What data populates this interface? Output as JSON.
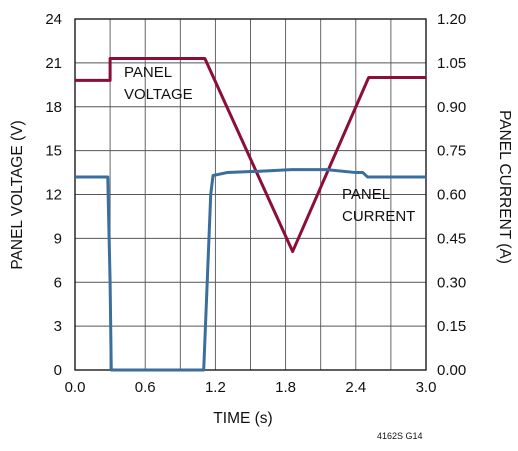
{
  "chart_data": {
    "type": "line",
    "title": "",
    "xlabel": "TIME (s)",
    "ylabel": "PANEL VOLTAGE (V)",
    "y2label": "PANEL CURRENT (A)",
    "xlim": [
      0,
      3.0
    ],
    "ylim": [
      0,
      24
    ],
    "y2lim": [
      0,
      1.2
    ],
    "x_ticks": [
      0.0,
      0.6,
      1.2,
      1.8,
      2.4,
      3.0
    ],
    "x_tick_labels": [
      "0.0",
      "0.6",
      "1.2",
      "1.8",
      "2.4",
      "3.0"
    ],
    "y_ticks": [
      0,
      3,
      6,
      9,
      12,
      15,
      18,
      21,
      24
    ],
    "y_tick_labels": [
      "0",
      "3",
      "6",
      "9",
      "12",
      "15",
      "18",
      "21",
      "24"
    ],
    "y2_ticks": [
      0,
      0.15,
      0.3,
      0.45,
      0.6,
      0.75,
      0.9,
      1.05,
      1.2
    ],
    "y2_tick_labels": [
      "0.00",
      "0.15",
      "0.30",
      "0.45",
      "0.60",
      "0.75",
      "0.90",
      "1.05",
      "1.20"
    ],
    "grid": true,
    "x_minor_divisions": 2,
    "series": [
      {
        "name": "PANEL VOLTAGE",
        "axis": "left",
        "color": "#8b0d3a",
        "x": [
          0.0,
          0.3,
          0.3,
          1.11,
          1.86,
          2.51,
          3.0
        ],
        "y": [
          19.8,
          19.8,
          21.3,
          21.3,
          8.1,
          20.0,
          20.0
        ]
      },
      {
        "name": "PANEL CURRENT",
        "axis": "right",
        "color": "#3a6e9d",
        "x": [
          0.0,
          0.28,
          0.3,
          0.31,
          1.1,
          1.12,
          1.16,
          1.18,
          1.3,
          1.6,
          1.85,
          2.15,
          2.4,
          2.46,
          2.5,
          3.0
        ],
        "y": [
          0.66,
          0.66,
          0.3,
          0.0,
          0.0,
          0.2,
          0.6,
          0.665,
          0.675,
          0.68,
          0.685,
          0.685,
          0.675,
          0.675,
          0.66,
          0.66
        ]
      }
    ],
    "annotations": [
      {
        "lines": [
          "PANEL",
          "VOLTAGE"
        ],
        "series": "PANEL VOLTAGE"
      },
      {
        "lines": [
          "PANEL",
          "CURRENT"
        ],
        "series": "PANEL CURRENT"
      }
    ],
    "figure_tag": "4162S G14"
  }
}
